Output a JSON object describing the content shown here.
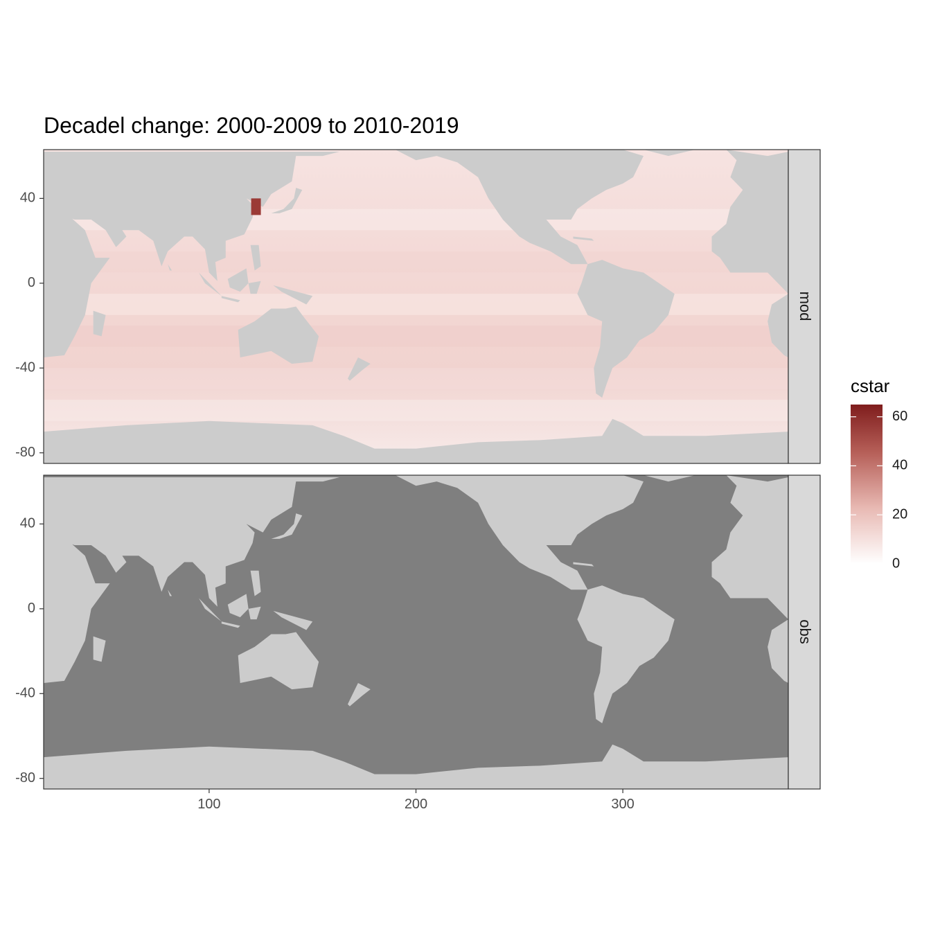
{
  "chart_data": {
    "type": "heatmap",
    "title": "Decadel change: 2000-2009 to 2010-2019",
    "xlabel": "",
    "ylabel": "",
    "xlim": [
      20,
      380
    ],
    "ylim": [
      -85,
      63
    ],
    "x_ticks": [
      100,
      200,
      300
    ],
    "y_ticks": [
      40,
      0,
      -40,
      -80
    ],
    "grid": false,
    "panels": [
      {
        "facet": "mod",
        "ocean_value_range": [
          0,
          10
        ],
        "max_hotspot": {
          "lon": 122,
          "lat": 38,
          "value": 60
        }
      },
      {
        "facet": "obs",
        "ocean_value_range": null,
        "note_fill": "NA"
      }
    ],
    "legend": {
      "title": "cstar",
      "placement": "right",
      "min": 0,
      "max": 65,
      "ticks": [
        0,
        20,
        40,
        60
      ],
      "low_color": "#ffffff",
      "high_color": "#7f1d1d"
    },
    "colors": {
      "land": "#cccccc",
      "na_ocean": "#7f7f7f",
      "ocean_low": "#f7eceb",
      "ocean_mid": "#ecc9c5",
      "strip": "#d9d9d9"
    }
  }
}
